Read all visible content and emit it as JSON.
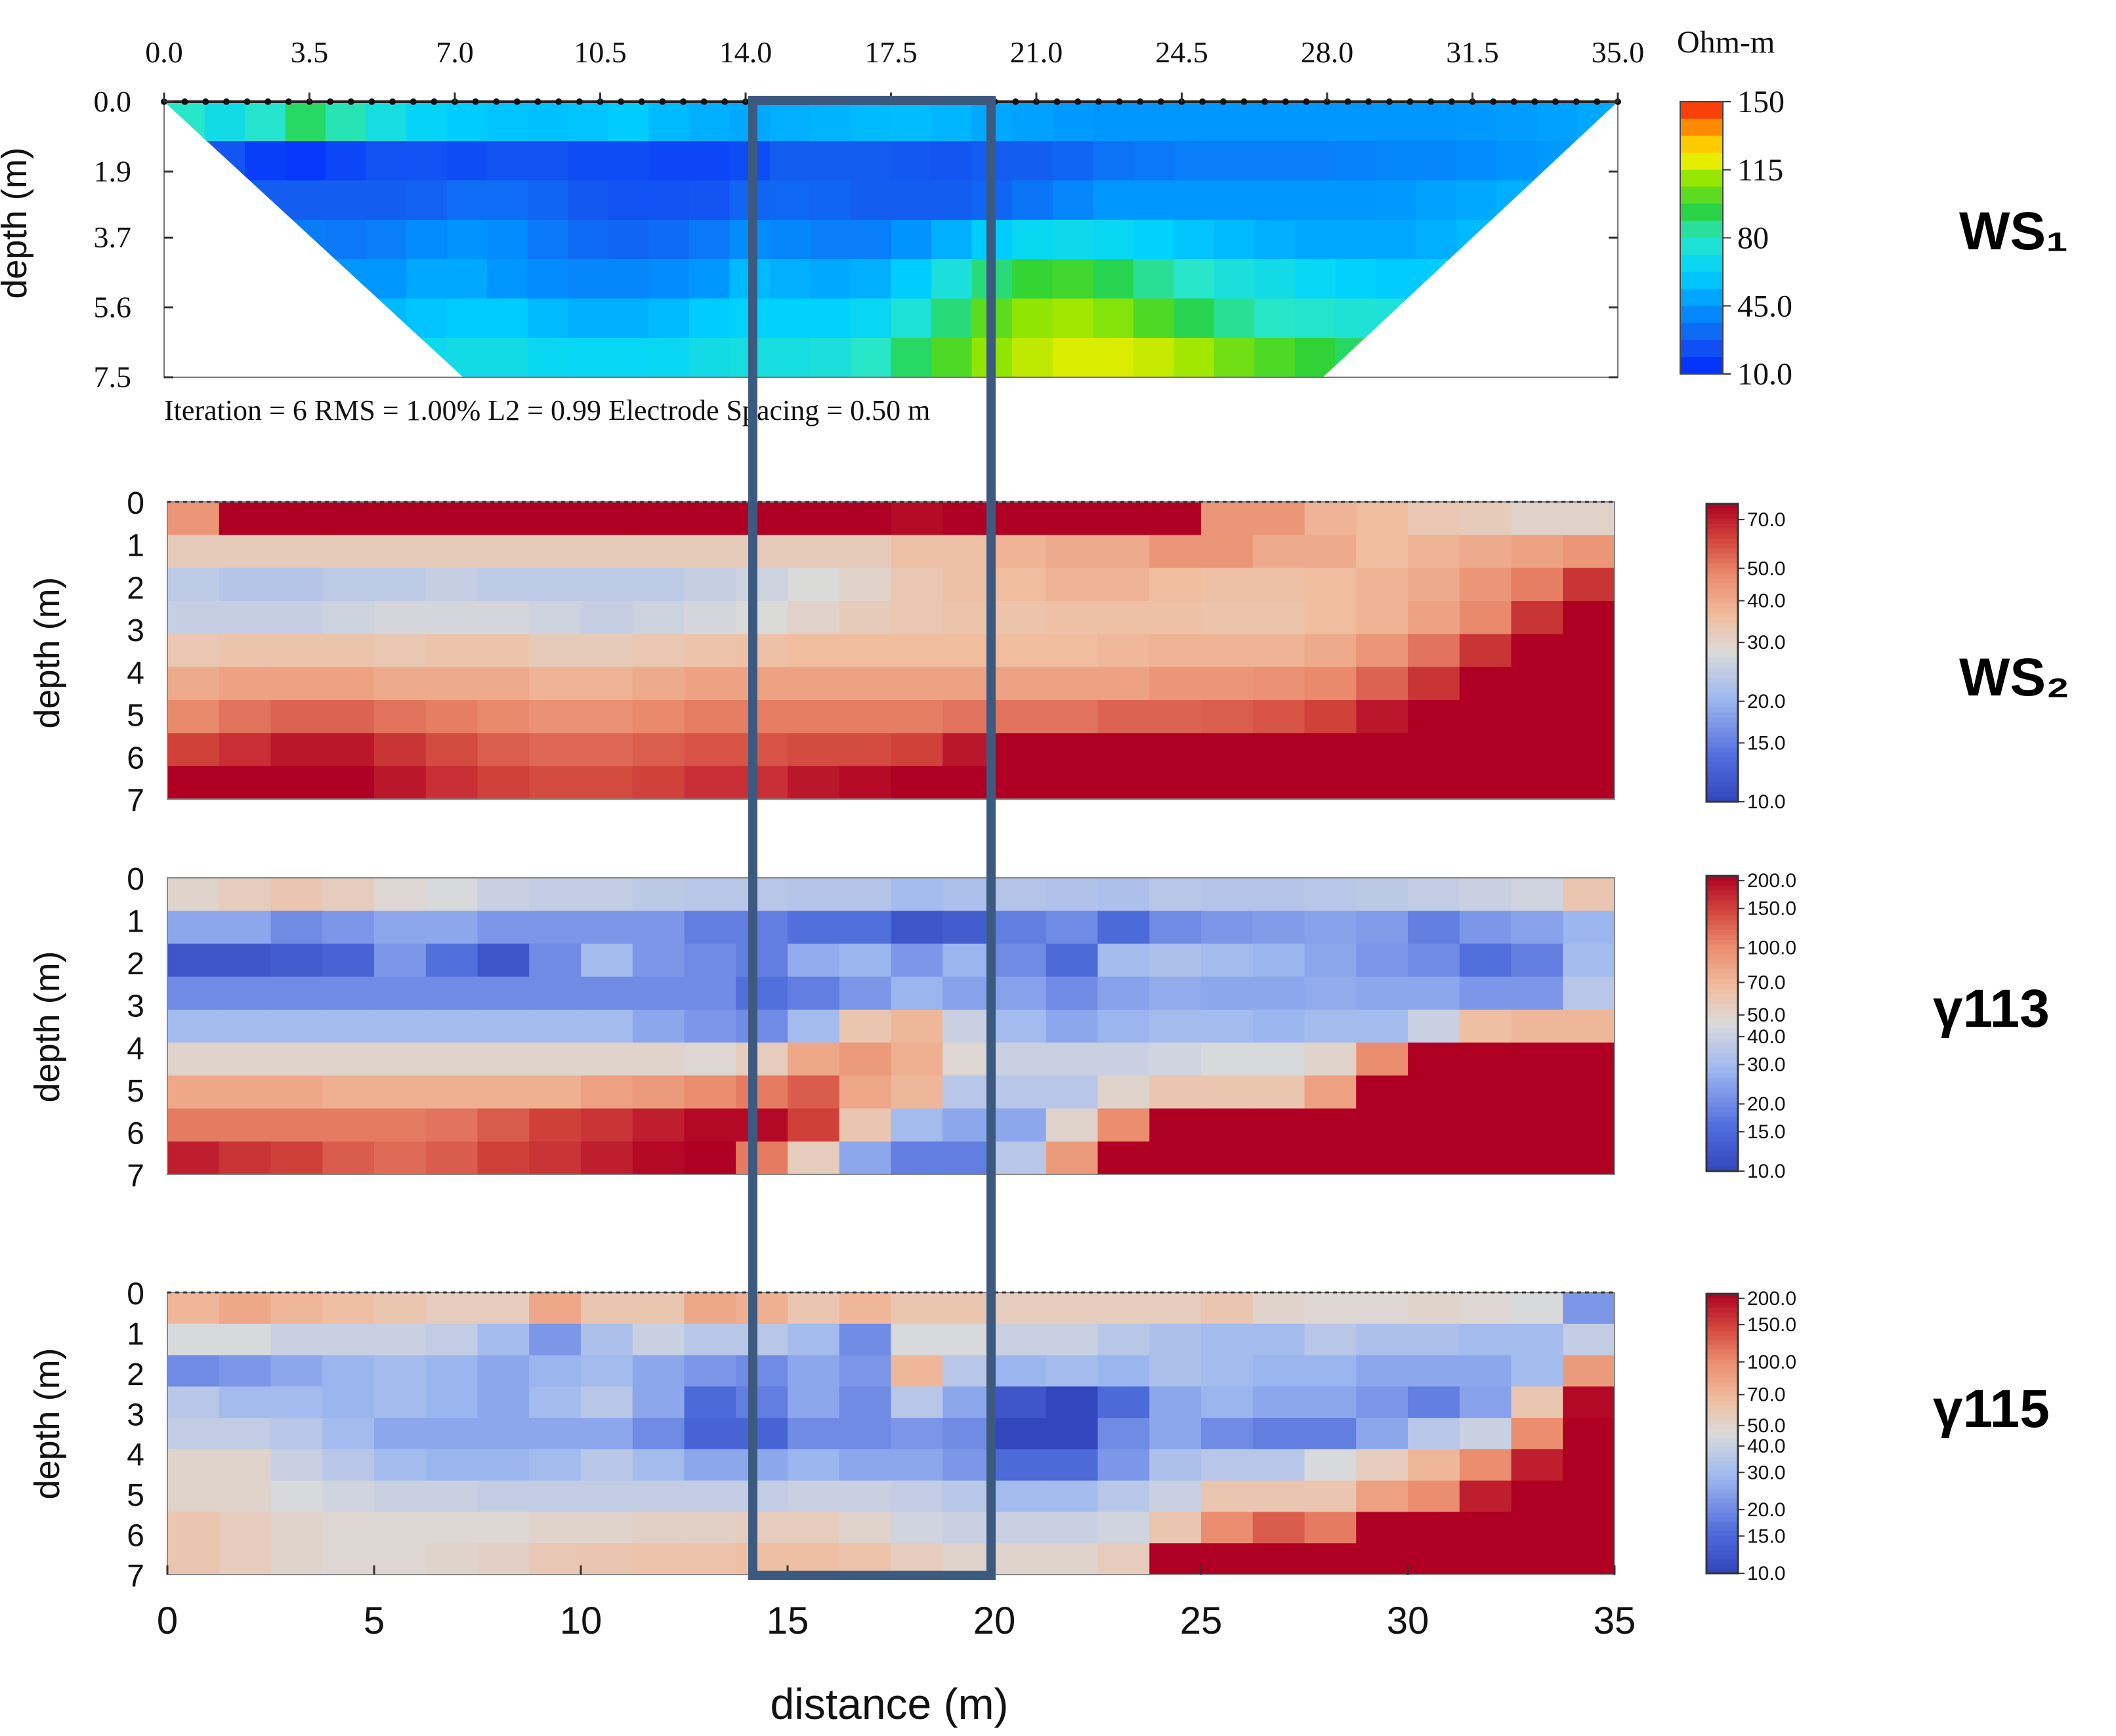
{
  "figure": {
    "xlabel": "distance (m)",
    "highlight_box": {
      "x_range": [
        14.0,
        20.0
      ],
      "color": "#3c5a80"
    }
  },
  "chart_data": [
    {
      "id": "ws1",
      "type": "heatmap",
      "label": "WS₁",
      "ylabel": "depth (m)",
      "top_ticks": [
        "0.0",
        "3.5",
        "7.0",
        "10.5",
        "14.0",
        "17.5",
        "21.0",
        "24.5",
        "28.0",
        "31.5",
        "35.0"
      ],
      "depth_ticks": [
        "0.0",
        "1.9",
        "3.7",
        "5.6",
        "7.5"
      ],
      "xlim": [
        0,
        35
      ],
      "depth_range": [
        0,
        7.5
      ],
      "footer": "Iteration = 6    RMS = 1.00%    L2 = 0.99    Electrode Spacing = 0.50 m",
      "colorbar": {
        "title": "Ohm-m",
        "ticks": [
          "150",
          "115",
          "80",
          "45.0",
          "10.0"
        ]
      },
      "section_depth_profile": [
        0,
        7.5,
        7.5,
        0
      ],
      "section_x_profile": [
        0,
        7.2,
        27.9,
        35
      ],
      "grid_cols": 36,
      "grid_rows": 7,
      "rows": [
        [
          80,
          70,
          78,
          90,
          82,
          72,
          64,
          60,
          58,
          57,
          58,
          60,
          55,
          52,
          50,
          52,
          53,
          55,
          56,
          54,
          50,
          48,
          46,
          45,
          45,
          45,
          45,
          45,
          45,
          45,
          45,
          45,
          46,
          47,
          48,
          50
        ],
        [
          36,
          25,
          17,
          15,
          20,
          24,
          24,
          22,
          24,
          24,
          22,
          22,
          20,
          20,
          22,
          27,
          28,
          27,
          26,
          25,
          27,
          28,
          30,
          34,
          36,
          38,
          38,
          38,
          38,
          39,
          40,
          40,
          42,
          44,
          46,
          48
        ],
        [
          38,
          30,
          28,
          28,
          28,
          28,
          29,
          33,
          33,
          30,
          26,
          24,
          24,
          25,
          30,
          31,
          30,
          28,
          27,
          28,
          30,
          35,
          40,
          45,
          45,
          45,
          45,
          45,
          45,
          45,
          46,
          48,
          50,
          52,
          55,
          55
        ],
        [
          40,
          40,
          38,
          37,
          36,
          38,
          42,
          44,
          42,
          36,
          32,
          30,
          32,
          36,
          42,
          40,
          38,
          38,
          44,
          52,
          60,
          66,
          68,
          66,
          62,
          58,
          55,
          52,
          50,
          50,
          50,
          52,
          55,
          55,
          55,
          55
        ],
        [
          45,
          45,
          45,
          45,
          45,
          45,
          50,
          50,
          45,
          42,
          40,
          40,
          42,
          45,
          55,
          52,
          50,
          52,
          60,
          74,
          88,
          96,
          98,
          92,
          85,
          80,
          74,
          70,
          65,
          62,
          60,
          60,
          60,
          60,
          60,
          60
        ],
        [
          55,
          55,
          55,
          55,
          55,
          55,
          58,
          60,
          60,
          55,
          52,
          52,
          55,
          60,
          62,
          62,
          62,
          66,
          75,
          88,
          102,
          110,
          112,
          108,
          100,
          92,
          85,
          80,
          78,
          76,
          75,
          75,
          75,
          75,
          75,
          75
        ],
        [
          65,
          65,
          65,
          65,
          65,
          65,
          68,
          70,
          70,
          66,
          65,
          65,
          66,
          70,
          72,
          72,
          74,
          80,
          90,
          100,
          110,
          115,
          118,
          118,
          116,
          112,
          105,
          100,
          95,
          90,
          88,
          88,
          88,
          88,
          88,
          88
        ]
      ]
    },
    {
      "id": "ws2",
      "type": "heatmap",
      "label": "WS₂",
      "ylabel": "depth (m)",
      "depth_ticks": [
        "0",
        "1",
        "2",
        "3",
        "4",
        "5",
        "6",
        "7"
      ],
      "xlim": [
        0,
        35
      ],
      "depth_range": [
        0,
        7
      ],
      "colorbar": {
        "ticks": [
          "70.0",
          "50.0",
          "40.0",
          "30.0",
          "20.0",
          "15.0",
          "10.0"
        ]
      },
      "grid_cols": 28,
      "grid_rows": 9,
      "rows": [
        [
          45,
          80,
          80,
          80,
          80,
          80,
          80,
          80,
          80,
          80,
          80,
          80,
          80,
          80,
          75,
          80,
          78,
          80,
          80,
          80,
          45,
          45,
          38,
          36,
          33,
          32,
          30,
          30
        ],
        [
          32,
          32,
          32,
          32,
          32,
          32,
          32,
          32,
          32,
          32,
          32,
          32,
          32,
          32,
          35,
          35,
          38,
          40,
          40,
          45,
          45,
          40,
          40,
          36,
          38,
          40,
          42,
          45
        ],
        [
          24,
          23,
          23,
          24,
          24,
          25,
          24,
          24,
          24,
          24,
          25,
          26,
          28,
          30,
          33,
          35,
          36,
          38,
          38,
          36,
          35,
          35,
          36,
          38,
          40,
          45,
          50,
          65
        ],
        [
          25,
          25,
          25,
          26,
          27,
          27,
          27,
          26,
          25,
          26,
          27,
          28,
          30,
          32,
          33,
          34,
          34,
          35,
          35,
          35,
          34,
          34,
          36,
          38,
          42,
          48,
          65,
          80
        ],
        [
          33,
          34,
          34,
          34,
          33,
          34,
          34,
          32,
          32,
          33,
          34,
          35,
          36,
          36,
          36,
          36,
          36,
          36,
          37,
          38,
          38,
          38,
          40,
          45,
          52,
          65,
          80,
          80
        ],
        [
          40,
          42,
          42,
          42,
          40,
          40,
          40,
          38,
          38,
          40,
          42,
          42,
          42,
          42,
          42,
          42,
          42,
          42,
          42,
          45,
          45,
          46,
          48,
          55,
          65,
          80,
          80,
          80
        ],
        [
          48,
          52,
          55,
          55,
          52,
          50,
          48,
          46,
          46,
          48,
          50,
          50,
          50,
          50,
          50,
          52,
          52,
          52,
          55,
          55,
          56,
          58,
          62,
          72,
          80,
          80,
          80,
          80
        ],
        [
          62,
          66,
          72,
          72,
          65,
          60,
          56,
          54,
          54,
          56,
          58,
          58,
          60,
          60,
          62,
          72,
          80,
          80,
          80,
          80,
          80,
          80,
          80,
          80,
          80,
          80,
          80,
          80
        ],
        [
          80,
          80,
          80,
          80,
          72,
          66,
          62,
          60,
          60,
          62,
          66,
          66,
          72,
          75,
          80,
          80,
          80,
          80,
          80,
          80,
          80,
          80,
          80,
          80,
          80,
          80,
          80,
          80
        ]
      ]
    },
    {
      "id": "y113",
      "type": "heatmap",
      "label": "γ113",
      "ylabel": "depth (m)",
      "depth_ticks": [
        "0",
        "1",
        "2",
        "3",
        "4",
        "5",
        "6",
        "7"
      ],
      "xlim": [
        0,
        35
      ],
      "depth_range": [
        0,
        7
      ],
      "colorbar": {
        "ticks": [
          "200.0",
          "150.0",
          "100.0",
          "70.0",
          "50.0",
          "40.0",
          "30.0",
          "20.0",
          "15.0",
          "10.0"
        ]
      },
      "grid_cols": 28,
      "grid_rows": 9,
      "rows": [
        [
          50,
          55,
          60,
          55,
          48,
          45,
          40,
          38,
          38,
          36,
          35,
          35,
          34,
          34,
          30,
          32,
          34,
          33,
          32,
          35,
          34,
          34,
          35,
          36,
          38,
          40,
          42,
          60
        ],
        [
          25,
          25,
          20,
          22,
          25,
          25,
          22,
          22,
          22,
          22,
          18,
          18,
          16,
          16,
          12,
          13,
          18,
          20,
          15,
          20,
          22,
          23,
          24,
          23,
          18,
          22,
          24,
          28
        ],
        [
          12,
          12,
          13,
          14,
          22,
          16,
          12,
          20,
          30,
          22,
          20,
          18,
          26,
          28,
          22,
          28,
          20,
          15,
          30,
          32,
          30,
          28,
          25,
          22,
          20,
          16,
          18,
          30
        ],
        [
          20,
          20,
          20,
          20,
          20,
          20,
          20,
          20,
          20,
          20,
          20,
          16,
          18,
          22,
          28,
          24,
          24,
          20,
          24,
          26,
          25,
          25,
          26,
          25,
          25,
          22,
          22,
          35
        ],
        [
          30,
          30,
          30,
          30,
          30,
          30,
          30,
          30,
          30,
          25,
          22,
          20,
          30,
          60,
          70,
          40,
          30,
          25,
          28,
          30,
          30,
          28,
          30,
          30,
          40,
          65,
          70,
          70
        ],
        [
          50,
          50,
          50,
          50,
          50,
          50,
          50,
          50,
          50,
          50,
          48,
          55,
          80,
          90,
          75,
          48,
          40,
          40,
          40,
          42,
          45,
          45,
          50,
          100,
          220,
          220,
          220,
          220
        ],
        [
          80,
          80,
          80,
          75,
          75,
          75,
          75,
          75,
          85,
          90,
          100,
          110,
          130,
          80,
          70,
          35,
          35,
          35,
          50,
          60,
          60,
          60,
          85,
          220,
          220,
          220,
          220,
          220
        ],
        [
          110,
          110,
          110,
          110,
          110,
          115,
          130,
          150,
          160,
          180,
          200,
          200,
          150,
          60,
          30,
          25,
          25,
          50,
          100,
          220,
          220,
          220,
          220,
          220,
          220,
          220,
          220,
          220
        ],
        [
          180,
          160,
          150,
          130,
          120,
          130,
          150,
          160,
          180,
          200,
          220,
          110,
          55,
          25,
          18,
          18,
          35,
          90,
          220,
          220,
          220,
          220,
          220,
          220,
          220,
          220,
          220,
          220
        ]
      ]
    },
    {
      "id": "y115",
      "type": "heatmap",
      "label": "γ115",
      "ylabel": "depth (m)",
      "depth_ticks": [
        "0",
        "1",
        "2",
        "3",
        "4",
        "5",
        "6",
        "7"
      ],
      "xlim": [
        0,
        35
      ],
      "depth_range": [
        0,
        7
      ],
      "colorbar": {
        "ticks": [
          "200.0",
          "150.0",
          "100.0",
          "70.0",
          "50.0",
          "40.0",
          "30.0",
          "20.0",
          "15.0",
          "10.0"
        ]
      },
      "grid_cols": 28,
      "grid_rows": 9,
      "rows": [
        [
          70,
          80,
          70,
          65,
          60,
          55,
          55,
          80,
          60,
          60,
          80,
          75,
          60,
          70,
          60,
          60,
          55,
          55,
          55,
          55,
          60,
          50,
          48,
          48,
          50,
          48,
          45,
          22
        ],
        [
          45,
          45,
          40,
          40,
          40,
          38,
          30,
          22,
          32,
          40,
          35,
          35,
          30,
          20,
          45,
          45,
          40,
          40,
          35,
          32,
          30,
          30,
          35,
          32,
          32,
          30,
          30,
          38
        ],
        [
          20,
          22,
          25,
          28,
          30,
          28,
          25,
          28,
          30,
          25,
          22,
          20,
          25,
          22,
          70,
          35,
          28,
          30,
          28,
          32,
          30,
          28,
          28,
          25,
          25,
          25,
          30,
          90
        ],
        [
          35,
          30,
          30,
          28,
          30,
          28,
          25,
          30,
          35,
          25,
          15,
          18,
          25,
          20,
          35,
          25,
          12,
          10,
          15,
          25,
          28,
          25,
          25,
          22,
          18,
          24,
          60,
          200
        ],
        [
          38,
          38,
          35,
          30,
          25,
          25,
          25,
          25,
          25,
          20,
          14,
          14,
          20,
          20,
          22,
          20,
          10,
          10,
          20,
          25,
          20,
          18,
          18,
          25,
          35,
          40,
          100,
          220
        ],
        [
          50,
          50,
          40,
          35,
          30,
          28,
          28,
          30,
          35,
          30,
          25,
          25,
          28,
          25,
          25,
          22,
          15,
          15,
          22,
          32,
          35,
          35,
          45,
          55,
          70,
          100,
          180,
          220
        ],
        [
          50,
          50,
          45,
          42,
          40,
          40,
          38,
          38,
          38,
          38,
          38,
          38,
          40,
          40,
          38,
          35,
          30,
          30,
          35,
          40,
          60,
          60,
          60,
          85,
          100,
          180,
          220,
          220
        ],
        [
          60,
          55,
          50,
          48,
          48,
          48,
          48,
          50,
          50,
          52,
          52,
          55,
          55,
          50,
          42,
          40,
          40,
          40,
          42,
          60,
          100,
          130,
          110,
          220,
          220,
          220,
          220,
          220
        ],
        [
          60,
          55,
          50,
          48,
          48,
          50,
          52,
          58,
          60,
          62,
          62,
          65,
          65,
          62,
          55,
          50,
          50,
          50,
          55,
          220,
          220,
          220,
          220,
          220,
          220,
          220,
          220,
          220
        ]
      ]
    }
  ],
  "bottom_axis": {
    "ticks": [
      "0",
      "5",
      "10",
      "15",
      "20",
      "25",
      "30",
      "35"
    ]
  }
}
